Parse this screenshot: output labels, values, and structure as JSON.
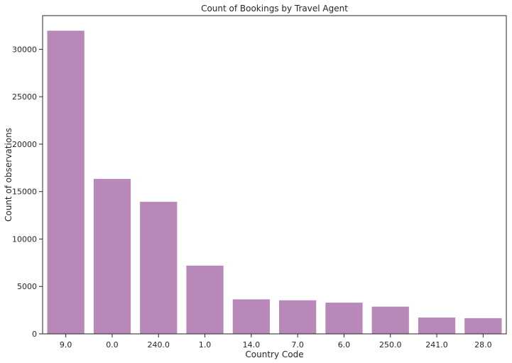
{
  "chart_data": {
    "type": "bar",
    "title": "Count of Bookings by Travel Agent",
    "xlabel": "Country Code",
    "ylabel": "Count of observations",
    "categories": [
      "9.0",
      "0.0",
      "240.0",
      "1.0",
      "14.0",
      "7.0",
      "6.0",
      "250.0",
      "241.0",
      "28.0"
    ],
    "values": [
      31960,
      16340,
      13920,
      7190,
      3640,
      3540,
      3290,
      2870,
      1720,
      1660
    ],
    "ylim": [
      0,
      33550
    ],
    "yticks": [
      0,
      5000,
      10000,
      15000,
      20000,
      25000,
      30000
    ],
    "grid": false,
    "legend": "none",
    "bar_color": "#b888b8",
    "axis_color": "#262626"
  }
}
